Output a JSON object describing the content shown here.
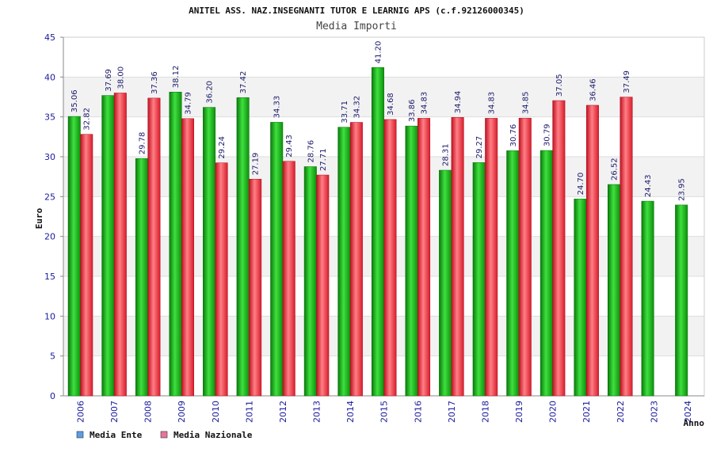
{
  "chart_data": {
    "type": "bar",
    "title": "ANITEL ASS. NAZ.INSEGNANTI TUTOR E LEARNIG APS (c.f.92126000345)",
    "subtitle": "Media Importi",
    "xlabel": "Anno",
    "ylabel": "Euro",
    "ylim": [
      0,
      45
    ],
    "yticks": [
      0,
      5,
      10,
      15,
      20,
      25,
      30,
      35,
      40,
      45
    ],
    "grid": true,
    "legend_position": "bottom-left",
    "categories": [
      "2006",
      "2007",
      "2008",
      "2009",
      "2010",
      "2011",
      "2012",
      "2013",
      "2014",
      "2015",
      "2016",
      "2017",
      "2018",
      "2019",
      "2020",
      "2021",
      "2022",
      "2023",
      "2024"
    ],
    "series": [
      {
        "name": "Media Ente",
        "color": "#19b319",
        "legend_color": "#5a9ee8",
        "values": [
          35.06,
          37.69,
          29.78,
          38.12,
          36.2,
          37.42,
          34.33,
          28.76,
          33.71,
          41.2,
          33.86,
          28.31,
          29.27,
          30.76,
          30.79,
          24.7,
          26.52,
          24.43,
          23.95
        ],
        "labels": [
          "35.06",
          "37.69",
          "29.78",
          "38.12",
          "36.20",
          "37.42",
          "34.33",
          "28.76",
          "33.71",
          "41.20",
          "33.86",
          "28.31",
          "29.27",
          "30.76",
          "30.79",
          "24.70",
          "26.52",
          "24.43",
          "23.95"
        ]
      },
      {
        "name": "Media Nazionale",
        "color": "#e8303a",
        "legend_color": "#e8749a",
        "values": [
          32.82,
          38.0,
          37.36,
          34.79,
          29.24,
          27.19,
          29.43,
          27.71,
          34.32,
          34.68,
          34.83,
          34.94,
          34.83,
          34.85,
          37.05,
          36.46,
          37.49,
          null,
          null
        ],
        "labels": [
          "32.82",
          "38.00",
          "37.36",
          "34.79",
          "29.24",
          "27.19",
          "29.43",
          "27.71",
          "34.32",
          "34.68",
          "34.83",
          "34.94",
          "34.83",
          "34.85",
          "37.05",
          "36.46",
          "37.49",
          null,
          null
        ]
      }
    ]
  }
}
